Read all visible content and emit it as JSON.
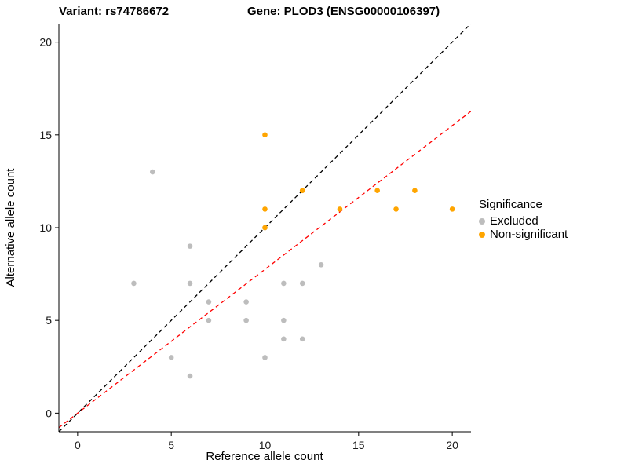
{
  "title": {
    "variant": "Variant: rs74786672",
    "gene": "Gene: PLOD3 (ENSG00000106397)"
  },
  "axes": {
    "x_label": "Reference allele count",
    "y_label": "Alternative allele count"
  },
  "legend": {
    "title": "Significance",
    "items": [
      {
        "label": "Excluded",
        "color": "#BDBDBD"
      },
      {
        "label": "Non-significant",
        "color": "#FFA500"
      }
    ]
  },
  "chart_data": {
    "type": "scatter",
    "title": "Variant: rs74786672 — Gene: PLOD3 (ENSG00000106397)",
    "xlabel": "Reference allele count",
    "ylabel": "Alternative allele count",
    "xlim": [
      -1,
      21
    ],
    "ylim": [
      -1,
      21
    ],
    "x_ticks": [
      0,
      5,
      10,
      15,
      20
    ],
    "y_ticks": [
      0,
      5,
      10,
      15,
      20
    ],
    "grid": false,
    "legend_position": "right",
    "series": [
      {
        "name": "Excluded",
        "color": "#BDBDBD",
        "points": [
          [
            3,
            7
          ],
          [
            4,
            13
          ],
          [
            5,
            3
          ],
          [
            6,
            2
          ],
          [
            6,
            7
          ],
          [
            6,
            9
          ],
          [
            7,
            5
          ],
          [
            7,
            6
          ],
          [
            9,
            5
          ],
          [
            9,
            6
          ],
          [
            10,
            3
          ],
          [
            10,
            10
          ],
          [
            11,
            4
          ],
          [
            11,
            5
          ],
          [
            11,
            7
          ],
          [
            12,
            4
          ],
          [
            12,
            7
          ],
          [
            12,
            12
          ],
          [
            13,
            8
          ]
        ]
      },
      {
        "name": "Non-significant",
        "color": "#FFA500",
        "points": [
          [
            10,
            10
          ],
          [
            10,
            11
          ],
          [
            10,
            15
          ],
          [
            12,
            12
          ],
          [
            14,
            11
          ],
          [
            16,
            12
          ],
          [
            17,
            11
          ],
          [
            18,
            12
          ],
          [
            20,
            11
          ]
        ]
      }
    ],
    "lines": [
      {
        "name": "identity-line",
        "color": "#000000",
        "dash": "dashed",
        "slope": 1,
        "intercept": 0
      },
      {
        "name": "regression-line",
        "color": "#FF0000",
        "dash": "dashed",
        "slope": 0.775,
        "intercept": 0
      }
    ]
  }
}
